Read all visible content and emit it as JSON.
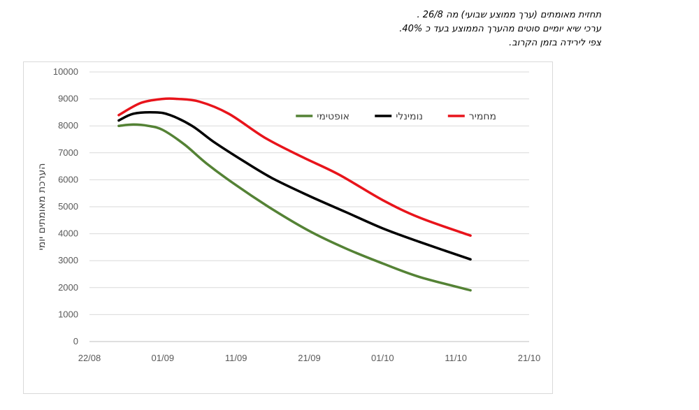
{
  "caption": {
    "line1": "תחזית מאומתים (ערך ממוצע שבועי) מה 26/8 .",
    "line2": "ערכי שיא יומיים סוטים מהערך הממוצע בעד כ 40%.",
    "line3": "צפי לירידה בזמן הקרוב."
  },
  "chart_data": {
    "type": "line",
    "title": "",
    "xlabel": "",
    "ylabel": "הערכת מאומתים יומי",
    "ylim": [
      0,
      10000
    ],
    "yticks": [
      0,
      1000,
      2000,
      3000,
      4000,
      5000,
      6000,
      7000,
      8000,
      9000,
      10000
    ],
    "ytick_labels": [
      "0",
      "1000",
      "2000",
      "3000",
      "4000",
      "5000",
      "6000",
      "7000",
      "8000",
      "9000",
      "10000"
    ],
    "xlim": [
      "2021-08-22",
      "2021-10-21"
    ],
    "xticks": [
      "2021-08-22",
      "2021-09-01",
      "2021-09-11",
      "2021-09-21",
      "2021-10-01",
      "2021-10-11",
      "2021-10-21"
    ],
    "xtick_labels": [
      "22/08",
      "01/09",
      "11/09",
      "21/09",
      "01/10",
      "11/10",
      "21/10"
    ],
    "grid": "horizontal",
    "legend_position": "top-center",
    "series": [
      {
        "name": "מחמיר",
        "color": "#e8141b",
        "x": [
          "2021-08-26",
          "2021-08-29",
          "2021-09-01",
          "2021-09-03",
          "2021-09-06",
          "2021-09-10",
          "2021-09-15",
          "2021-09-20",
          "2021-09-25",
          "2021-10-01",
          "2021-10-06",
          "2021-10-13"
        ],
        "y": [
          8400,
          8850,
          9000,
          9000,
          8900,
          8450,
          7550,
          6850,
          6200,
          5250,
          4600,
          3930
        ]
      },
      {
        "name": "נומינלי",
        "color": "#000000",
        "x": [
          "2021-08-26",
          "2021-08-28",
          "2021-08-31",
          "2021-09-02",
          "2021-09-05",
          "2021-09-08",
          "2021-09-12",
          "2021-09-16",
          "2021-09-21",
          "2021-09-26",
          "2021-10-01",
          "2021-10-06",
          "2021-10-13"
        ],
        "y": [
          8200,
          8450,
          8500,
          8400,
          8000,
          7400,
          6700,
          6050,
          5400,
          4800,
          4200,
          3700,
          3050
        ]
      },
      {
        "name": "אופטימי",
        "color": "#548235",
        "x": [
          "2021-08-26",
          "2021-08-28",
          "2021-08-30",
          "2021-09-01",
          "2021-09-04",
          "2021-09-07",
          "2021-09-11",
          "2021-09-16",
          "2021-09-21",
          "2021-09-26",
          "2021-10-01",
          "2021-10-06",
          "2021-10-13"
        ],
        "y": [
          8000,
          8050,
          8000,
          7850,
          7300,
          6600,
          5800,
          4900,
          4100,
          3450,
          2900,
          2400,
          1900
        ]
      }
    ]
  }
}
